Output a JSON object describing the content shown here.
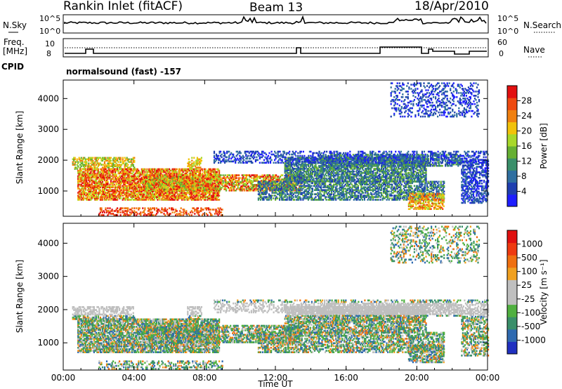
{
  "header": {
    "station": "Rankin Inlet (fitACF)",
    "beam": "Beam 13",
    "date": "18/Apr/2010"
  },
  "top_strip": {
    "left_label": "N.Sky",
    "right_label": "N.Search",
    "top_tick": "10^5",
    "bottom_tick": "10^0"
  },
  "freq_strip": {
    "left_label_1": "Freq.",
    "left_label_2": "[MHz]",
    "left_tick_top": "10",
    "left_tick_bottom": "8",
    "right_label": "Nave",
    "right_tick_top": "60",
    "right_tick_bottom": "0"
  },
  "cpid": {
    "label": "CPID",
    "text": "normalsound (fast) -157"
  },
  "colors": {
    "power_scale": [
      "#1e1eff",
      "#1f3fb0",
      "#2f6fa0",
      "#3a8f6a",
      "#66b033",
      "#a8d82a",
      "#f2c20a",
      "#f08010",
      "#ee4a10",
      "#e21010"
    ],
    "velocity_scale": [
      "#2030c0",
      "#2f6ab0",
      "#3a8f6a",
      "#50b040",
      "#bfbfbf",
      "#bfbfbf",
      "#f0a020",
      "#f07010",
      "#ee3a10",
      "#e01010"
    ]
  },
  "chart_data": [
    {
      "type": "heatmap",
      "title": "Power",
      "xlabel": "",
      "ylabel": "Slant Range [km]",
      "x_ticks": [
        "00:00",
        "04:00",
        "08:00",
        "12:00",
        "16:00",
        "20:00",
        "00:00"
      ],
      "y_ticks": [
        "1000",
        "2000",
        "3000",
        "4000"
      ],
      "ylim": [
        180,
        4600
      ],
      "colorbar": {
        "label": "Power [dB]",
        "ticks": [
          "28",
          "24",
          "20",
          "16",
          "12",
          "8",
          "4"
        ]
      }
    },
    {
      "type": "heatmap",
      "title": "Velocity",
      "xlabel": "Time UT",
      "ylabel": "Slant Range [km]",
      "x_ticks": [
        "00:00",
        "04:00",
        "08:00",
        "12:00",
        "16:00",
        "20:00",
        "00:00"
      ],
      "y_ticks": [
        "1000",
        "2000",
        "3000",
        "4000"
      ],
      "ylim": [
        180,
        4600
      ],
      "colorbar": {
        "label": "Velocity [m s⁻¹]",
        "ticks": [
          "1000",
          "500",
          "100",
          "25",
          "-25",
          "-100",
          "-500",
          "-1000"
        ]
      }
    }
  ]
}
